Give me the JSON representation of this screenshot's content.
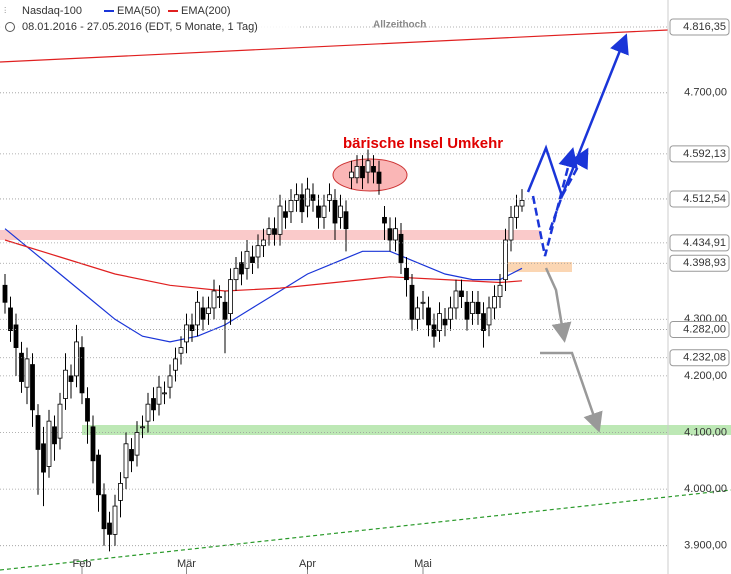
{
  "chart_data": {
    "type": "candlestick",
    "subtitle": "08.01.2016 - 27.05.2016 (EDT, 5 Monate, 1 Tag)",
    "categories": [
      null,
      null,
      null,
      null,
      null,
      null,
      null,
      null,
      null,
      null,
      null,
      null,
      null,
      null,
      "Feb",
      null,
      null,
      null,
      null,
      null,
      null,
      null,
      null,
      null,
      null,
      null,
      null,
      null,
      null,
      null,
      null,
      null,
      null,
      "Mär",
      null,
      null,
      null,
      null,
      null,
      null,
      null,
      null,
      null,
      null,
      null,
      null,
      null,
      null,
      null,
      null,
      null,
      null,
      null,
      null,
      null,
      "Apr",
      null,
      null,
      null,
      null,
      null,
      null,
      null,
      null,
      null,
      null,
      null,
      null,
      null,
      null,
      null,
      null,
      null,
      null,
      null,
      null,
      "Mai",
      null,
      null,
      null,
      null,
      null,
      null,
      null,
      null,
      null,
      null,
      null,
      null,
      null,
      null,
      null,
      null,
      null,
      null
    ],
    "series": [
      {
        "name": "Nasdaq-100",
        "color": "#000000",
        "open": [
          4360,
          4320,
          4290,
          4240,
          4180,
          4220,
          4130,
          4080,
          4040,
          4110,
          4090,
          4160,
          4200,
          4200,
          4250,
          4160,
          4110,
          4060,
          3990,
          3940,
          3920,
          3980,
          4020,
          4070,
          4060,
          4110,
          4120,
          4160,
          4150,
          4170,
          4180,
          4210,
          4240,
          4260,
          4290,
          4290,
          4320,
          4310,
          4320,
          4340,
          4330,
          4310,
          4370,
          4400,
          4390,
          4410,
          4410,
          4430,
          4450,
          4460,
          4450,
          4490,
          4490,
          4510,
          4520,
          4500,
          4520,
          4500,
          4480,
          4510,
          4510,
          4480,
          4490,
          4550,
          4550,
          4570,
          4560,
          4570,
          4560,
          4480,
          4460,
          4440,
          4450,
          4390,
          4360,
          4300,
          4330,
          4320,
          4290,
          4280,
          4300,
          4300,
          4320,
          4350,
          4330,
          4310,
          4330,
          4310,
          4290,
          4320,
          4340,
          4370,
          4440,
          4480,
          4500
        ],
        "high": [
          4380,
          4340,
          4310,
          4260,
          4250,
          4240,
          4150,
          4110,
          4140,
          4130,
          4170,
          4240,
          4220,
          4290,
          4270,
          4180,
          4130,
          4070,
          4010,
          3960,
          3990,
          4030,
          4100,
          4090,
          4120,
          4130,
          4170,
          4180,
          4200,
          4190,
          4220,
          4250,
          4270,
          4310,
          4310,
          4350,
          4340,
          4340,
          4370,
          4360,
          4350,
          4390,
          4410,
          4420,
          4440,
          4430,
          4450,
          4460,
          4480,
          4480,
          4520,
          4510,
          4530,
          4540,
          4540,
          4550,
          4540,
          4520,
          4520,
          4540,
          4530,
          4520,
          4510,
          4580,
          4590,
          4590,
          4600,
          4590,
          4580,
          4500,
          4480,
          4480,
          4470,
          4410,
          4380,
          4340,
          4350,
          4340,
          4310,
          4330,
          4320,
          4340,
          4370,
          4370,
          4350,
          4350,
          4350,
          4330,
          4340,
          4360,
          4380,
          4460,
          4500,
          4520,
          4530
        ],
        "low": [
          4310,
          4260,
          4200,
          4170,
          4150,
          4110,
          3990,
          3970,
          4020,
          4050,
          4070,
          4140,
          4160,
          4180,
          4150,
          4080,
          4010,
          3960,
          3900,
          3890,
          3900,
          3950,
          4000,
          4030,
          4040,
          4090,
          4100,
          4120,
          4130,
          4150,
          4160,
          4190,
          4220,
          4240,
          4260,
          4270,
          4280,
          4290,
          4300,
          4320,
          4240,
          4290,
          4350,
          4360,
          4370,
          4380,
          4390,
          4410,
          4430,
          4430,
          4430,
          4460,
          4470,
          4490,
          4470,
          4480,
          4490,
          4460,
          4460,
          4490,
          4440,
          4460,
          4420,
          4530,
          4540,
          4530,
          4540,
          4540,
          4520,
          4440,
          4420,
          4420,
          4380,
          4340,
          4280,
          4280,
          4300,
          4270,
          4250,
          4260,
          4270,
          4280,
          4300,
          4320,
          4280,
          4290,
          4290,
          4250,
          4270,
          4300,
          4320,
          4350,
          4420,
          4460,
          4490
        ],
        "close": [
          4330,
          4280,
          4250,
          4190,
          4230,
          4140,
          4070,
          4030,
          4120,
          4080,
          4150,
          4210,
          4190,
          4260,
          4170,
          4120,
          4050,
          3990,
          3930,
          3920,
          3970,
          4010,
          4080,
          4050,
          4100,
          4110,
          4150,
          4140,
          4180,
          4170,
          4200,
          4230,
          4250,
          4290,
          4280,
          4330,
          4300,
          4320,
          4350,
          4340,
          4300,
          4370,
          4390,
          4380,
          4420,
          4400,
          4430,
          4440,
          4460,
          4450,
          4500,
          4480,
          4510,
          4520,
          4490,
          4530,
          4510,
          4480,
          4500,
          4520,
          4470,
          4500,
          4460,
          4560,
          4570,
          4550,
          4580,
          4560,
          4540,
          4470,
          4440,
          4460,
          4400,
          4370,
          4300,
          4320,
          4330,
          4290,
          4270,
          4310,
          4290,
          4320,
          4350,
          4340,
          4300,
          4330,
          4310,
          4280,
          4320,
          4340,
          4360,
          4440,
          4480,
          4500,
          4510
        ]
      }
    ],
    "lines": [
      {
        "name": "EMA(50)",
        "color": "#1a35d8",
        "x": [
          0,
          5,
          10,
          15,
          20,
          25,
          30,
          35,
          40,
          45,
          50,
          55,
          60,
          65,
          70,
          75,
          80,
          85,
          90,
          94
        ],
        "values": [
          4460,
          4420,
          4380,
          4340,
          4300,
          4270,
          4260,
          4270,
          4290,
          4320,
          4350,
          4380,
          4400,
          4420,
          4420,
          4400,
          4380,
          4370,
          4370,
          4390
        ]
      },
      {
        "name": "EMA(200)",
        "color": "#e02020",
        "x": [
          0,
          10,
          20,
          30,
          40,
          50,
          60,
          70,
          80,
          90,
          94
        ],
        "values": [
          4440,
          4410,
          4380,
          4360,
          4350,
          4355,
          4365,
          4375,
          4370,
          4365,
          4368
        ]
      }
    ],
    "ylim": [
      3850,
      4864
    ],
    "yticks": [
      {
        "value": 3900,
        "label": "3.900,00"
      },
      {
        "value": 4000,
        "label": "4.000,00"
      },
      {
        "value": 4100,
        "label": "4.100,00"
      },
      {
        "value": 4200,
        "label": "4.200,00"
      },
      {
        "value": 4300,
        "label": "4.300,00"
      },
      {
        "value": 4700,
        "label": "4.700,00"
      }
    ],
    "price_tags": [
      {
        "value": 4816.35,
        "label": "4.816,35"
      },
      {
        "value": 4592.13,
        "label": "4.592,13"
      },
      {
        "value": 4512.54,
        "label": "4.512,54"
      },
      {
        "value": 4434.91,
        "label": "4.434,91"
      },
      {
        "value": 4398.93,
        "label": "4.398,93"
      },
      {
        "value": 4282,
        "label": "4.282,00"
      },
      {
        "value": 4232.08,
        "label": "4.232,08"
      }
    ],
    "annotations": [
      "bärische Insel Umkehr",
      "Allzeithoch"
    ],
    "grid": true
  }
}
